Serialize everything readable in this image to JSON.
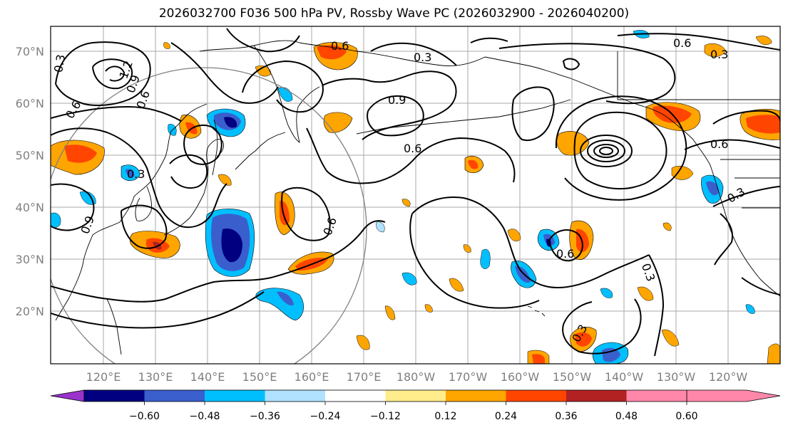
{
  "title": "2026032700 F036 500 hPa PV, Rossby Wave PC (2026032900 - 2026040200)",
  "map": {
    "lat_labels": [
      "70°N",
      "60°N",
      "50°N",
      "40°N",
      "30°N",
      "20°N"
    ],
    "lon_labels": [
      "120°E",
      "130°E",
      "140°E",
      "150°E",
      "160°E",
      "170°E",
      "180°W",
      "170°W",
      "160°W",
      "150°W",
      "140°W",
      "130°W",
      "120°W"
    ],
    "contour_labels": [
      "0.3",
      "0.6",
      "0.9",
      "1.2",
      "0.6",
      "0.3",
      "0.9",
      "0.6",
      "0.3",
      "0.6",
      "0.6",
      "0.3",
      "0.6",
      "0.9",
      "0.6",
      "0.3",
      "0.3",
      "0.6",
      "0.3"
    ]
  },
  "colorbar": {
    "ticks": [
      "−0.60",
      "−0.48",
      "−0.36",
      "−0.24",
      "−0.12",
      "0.12",
      "0.24",
      "0.36",
      "0.48",
      "0.60"
    ],
    "colors": [
      "#9933cc",
      "#000080",
      "#3a5fcd",
      "#00bfff",
      "#b0e2ff",
      "#ffffff",
      "#ffec8b",
      "#ffa500",
      "#ff4500",
      "#b22222",
      "#ff88aa"
    ]
  }
}
